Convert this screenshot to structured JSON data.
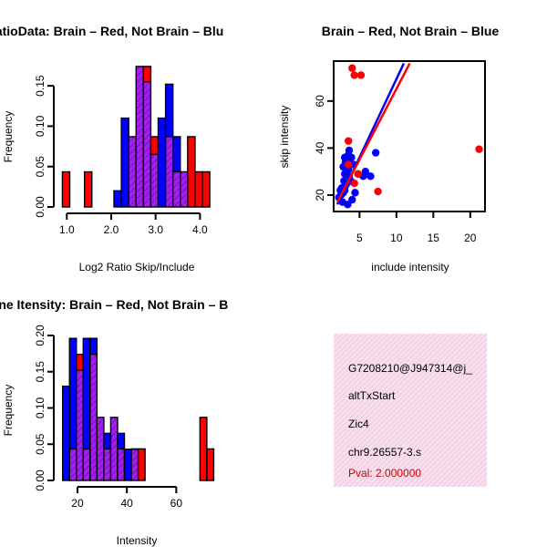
{
  "colors": {
    "red": "#ff0000",
    "blue": "#0000ff",
    "purple": "#a020f0",
    "panel_fill": "#f2d0e6"
  },
  "chart_data": [
    {
      "type": "bar",
      "subtype": "overlaid-histogram",
      "title": "RatioData: Brain – Red, Not Brain – Blu",
      "xlabel": "Log2 Ratio Skip/Include",
      "ylabel": "Frequency",
      "xlim": [
        0.85,
        4.3
      ],
      "ylim": [
        0,
        0.175
      ],
      "xticks": [
        1.0,
        2.0,
        3.0,
        4.0
      ],
      "xtick_labels": [
        "1.0",
        "2.0",
        "3.0",
        "4.0"
      ],
      "yticks": [
        0.0,
        0.05,
        0.1,
        0.15
      ],
      "ytick_labels": [
        "0.00",
        "0.05",
        "0.10",
        "0.15"
      ],
      "bin_width": 0.166,
      "bin_starts": [
        0.9,
        1.066,
        1.232,
        1.398,
        1.564,
        1.73,
        1.896,
        2.062,
        2.228,
        2.394,
        2.56,
        2.726,
        2.892,
        3.058,
        3.224,
        3.39,
        3.556,
        3.722,
        3.888,
        4.054
      ],
      "series": [
        {
          "name": "Brain",
          "color": "red",
          "values": [
            0.0435,
            0,
            0,
            0.0435,
            0,
            0,
            0,
            0,
            0,
            0.087,
            0.174,
            0.174,
            0.087,
            0,
            0.087,
            0.0435,
            0.0435,
            0.087,
            0.0435,
            0.0435
          ]
        },
        {
          "name": "Not Brain",
          "color": "blue",
          "values": [
            0,
            0,
            0,
            0,
            0,
            0,
            0,
            0.02,
            0.11,
            0.087,
            0.174,
            0.155,
            0.065,
            0.11,
            0.152,
            0.087,
            0.0435,
            0,
            0,
            0
          ]
        }
      ]
    },
    {
      "type": "scatter",
      "title": "Brain – Red, Not Brain – Blue",
      "xlabel": "include intensity",
      "ylabel": "skip intensity",
      "xlim": [
        1.5,
        22.0
      ],
      "ylim": [
        13.0,
        77.0
      ],
      "xticks": [
        5,
        10,
        15,
        20
      ],
      "xtick_labels": [
        "5",
        "10",
        "15",
        "20"
      ],
      "yticks": [
        20,
        40,
        60
      ],
      "ytick_labels": [
        "20",
        "40",
        "60"
      ],
      "series": [
        {
          "name": "Brain",
          "color": "red",
          "points": [
            [
              4.0,
              74
            ],
            [
              4.3,
              71
            ],
            [
              5.2,
              71
            ],
            [
              3.5,
              43
            ],
            [
              4.8,
              29
            ],
            [
              4.3,
              25
            ],
            [
              7.5,
              21.5
            ],
            [
              21.2,
              39.5
            ],
            [
              3.5,
              33
            ]
          ],
          "fit": [
            [
              2.0,
              17.0
            ],
            [
              11.8,
              76.0
            ]
          ]
        },
        {
          "name": "Not Brain",
          "color": "blue",
          "points": [
            [
              2.2,
              19
            ],
            [
              2.5,
              20
            ],
            [
              2.8,
              21
            ],
            [
              3.0,
              22
            ],
            [
              2.6,
              23
            ],
            [
              3.1,
              24
            ],
            [
              3.3,
              25
            ],
            [
              2.9,
              26
            ],
            [
              3.4,
              27
            ],
            [
              3.6,
              28
            ],
            [
              3.0,
              29
            ],
            [
              3.2,
              30
            ],
            [
              3.5,
              31
            ],
            [
              2.8,
              32
            ],
            [
              3.7,
              33
            ],
            [
              3.1,
              34
            ],
            [
              3.3,
              35
            ],
            [
              4.2,
              33
            ],
            [
              3.0,
              36
            ],
            [
              3.5,
              37
            ],
            [
              3.9,
              36
            ],
            [
              3.6,
              39
            ],
            [
              2.7,
              17
            ],
            [
              3.4,
              16
            ],
            [
              4.4,
              21
            ],
            [
              4.0,
              18
            ],
            [
              5.5,
              28
            ],
            [
              6.5,
              28
            ],
            [
              7.2,
              38
            ],
            [
              5.8,
              30
            ],
            [
              2.4,
              22
            ],
            [
              3.8,
              26
            ]
          ],
          "fit": [
            [
              2.0,
              16.0
            ],
            [
              11.0,
              76.0
            ]
          ]
        }
      ]
    },
    {
      "type": "bar",
      "subtype": "overlaid-histogram",
      "title": "Gene Itensity: Brain – Red, Not Brain – B",
      "xlabel": "Intensity",
      "ylabel": "Frequency",
      "xlim": [
        13,
        75
      ],
      "ylim": [
        0,
        0.2
      ],
      "xticks": [
        20,
        40,
        60
      ],
      "xtick_labels": [
        "20",
        "40",
        "60"
      ],
      "yticks": [
        0.0,
        0.05,
        0.1,
        0.15,
        0.2
      ],
      "ytick_labels": [
        "0.00",
        "0.05",
        "0.10",
        "0.15",
        "0.20"
      ],
      "bin_width": 2.78,
      "bin_starts": [
        14,
        16.78,
        19.56,
        22.34,
        25.12,
        27.9,
        30.68,
        33.46,
        36.24,
        39.02,
        41.8,
        44.58,
        47.36,
        50.14,
        52.92,
        55.7,
        58.48,
        61.26,
        64.04,
        66.82,
        69.6,
        72.38
      ],
      "series": [
        {
          "name": "Brain",
          "color": "red",
          "values": [
            0,
            0.0435,
            0.174,
            0.0435,
            0.174,
            0.087,
            0.0435,
            0.087,
            0.0435,
            0,
            0.0435,
            0.0435,
            0,
            0,
            0,
            0,
            0,
            0,
            0,
            0,
            0.087,
            0.0435
          ]
        },
        {
          "name": "Not Brain",
          "color": "blue",
          "values": [
            0.13,
            0.196,
            0.152,
            0.196,
            0.196,
            0.087,
            0.065,
            0.087,
            0.065,
            0.043,
            0.043,
            0,
            0,
            0,
            0,
            0,
            0,
            0,
            0,
            0,
            0,
            0
          ]
        }
      ]
    }
  ],
  "info_panel": {
    "id": "G7208210@J947314@j_",
    "event_type": "altTxStart",
    "gene": "Zic4",
    "location": "chr9.26557-3.s",
    "pval": "Pval: 2.000000"
  }
}
